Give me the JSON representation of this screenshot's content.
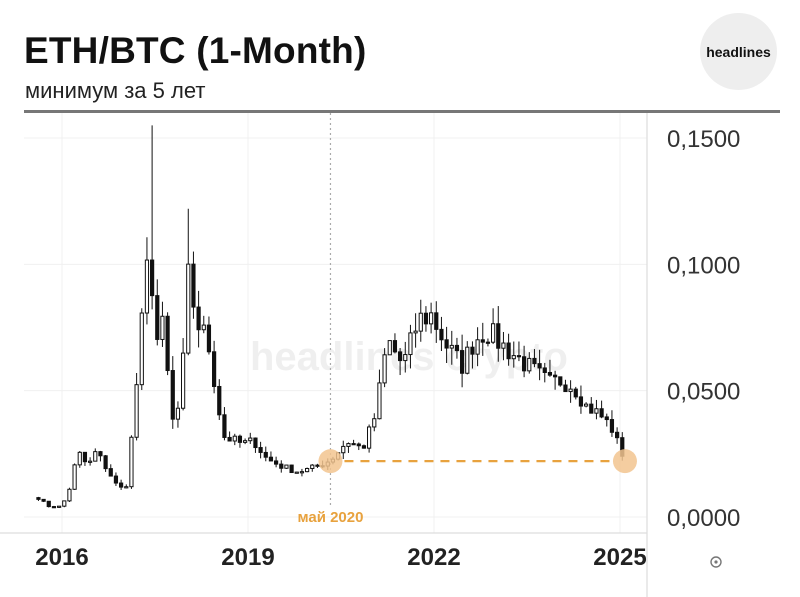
{
  "header": {
    "title": "ETH/BTC (1-Month)",
    "subtitle": "минимум за 5 лет",
    "brand": "headlines"
  },
  "watermark": "headlines crypto",
  "colors": {
    "up": "#111111",
    "down": "#111111",
    "annotation": "#E8A23E",
    "marker": "#F2C48F"
  },
  "chart_data": {
    "type": "candlestick",
    "title": "ETH/BTC (1-Month)",
    "subtitle": "минимум за 5 лет",
    "x_range": [
      2015.55,
      2025.45
    ],
    "ylim": [
      0,
      0.155
    ],
    "y_ticks": [
      {
        "value": 0.15,
        "label": "0,1500"
      },
      {
        "value": 0.1,
        "label": "0,1000"
      },
      {
        "value": 0.05,
        "label": "0,0500"
      },
      {
        "value": 0.0,
        "label": "0,0000"
      }
    ],
    "x_ticks": [
      {
        "value": 2016,
        "label": "2016"
      },
      {
        "value": 2019,
        "label": "2019"
      },
      {
        "value": 2022,
        "label": "2022"
      },
      {
        "value": 2025,
        "label": "2025"
      }
    ],
    "grid": true,
    "annotation": {
      "label": "май 2020",
      "x": 2020.33,
      "level": 0.0221,
      "end_x": 2025.08
    },
    "anchors": [
      [
        2015.62,
        0.0075
      ],
      [
        2015.8,
        0.004
      ],
      [
        2016.0,
        0.0042
      ],
      [
        2016.15,
        0.013
      ],
      [
        2016.25,
        0.026
      ],
      [
        2016.42,
        0.02
      ],
      [
        2016.55,
        0.026
      ],
      [
        2016.75,
        0.018
      ],
      [
        2016.92,
        0.011
      ],
      [
        2017.05,
        0.013
      ],
      [
        2017.18,
        0.046
      ],
      [
        2017.3,
        0.08
      ],
      [
        2017.42,
        0.11
      ],
      [
        2017.5,
        0.068
      ],
      [
        2017.62,
        0.075
      ],
      [
        2017.8,
        0.035
      ],
      [
        2017.92,
        0.048
      ],
      [
        2018.05,
        0.1
      ],
      [
        2018.15,
        0.078
      ],
      [
        2018.35,
        0.07
      ],
      [
        2018.6,
        0.032
      ],
      [
        2018.9,
        0.029
      ],
      [
        2019.1,
        0.03
      ],
      [
        2019.3,
        0.023
      ],
      [
        2019.55,
        0.02
      ],
      [
        2019.8,
        0.018
      ],
      [
        2020.0,
        0.019
      ],
      [
        2020.33,
        0.0225
      ],
      [
        2020.6,
        0.03
      ],
      [
        2020.85,
        0.027
      ],
      [
        2021.05,
        0.04
      ],
      [
        2021.25,
        0.07
      ],
      [
        2021.5,
        0.06
      ],
      [
        2021.75,
        0.078
      ],
      [
        2021.95,
        0.08
      ],
      [
        2022.2,
        0.068
      ],
      [
        2022.45,
        0.06
      ],
      [
        2022.65,
        0.07
      ],
      [
        2022.85,
        0.074
      ],
      [
        2023.1,
        0.068
      ],
      [
        2023.35,
        0.063
      ],
      [
        2023.6,
        0.058
      ],
      [
        2023.85,
        0.053
      ],
      [
        2024.05,
        0.054
      ],
      [
        2024.25,
        0.052
      ],
      [
        2024.45,
        0.044
      ],
      [
        2024.65,
        0.041
      ],
      [
        2024.85,
        0.036
      ],
      [
        2025.0,
        0.027
      ],
      [
        2025.1,
        0.0215
      ]
    ],
    "spikes": [
      {
        "x": 2017.45,
        "high": 0.155
      },
      {
        "x": 2018.05,
        "high": 0.122
      }
    ]
  }
}
